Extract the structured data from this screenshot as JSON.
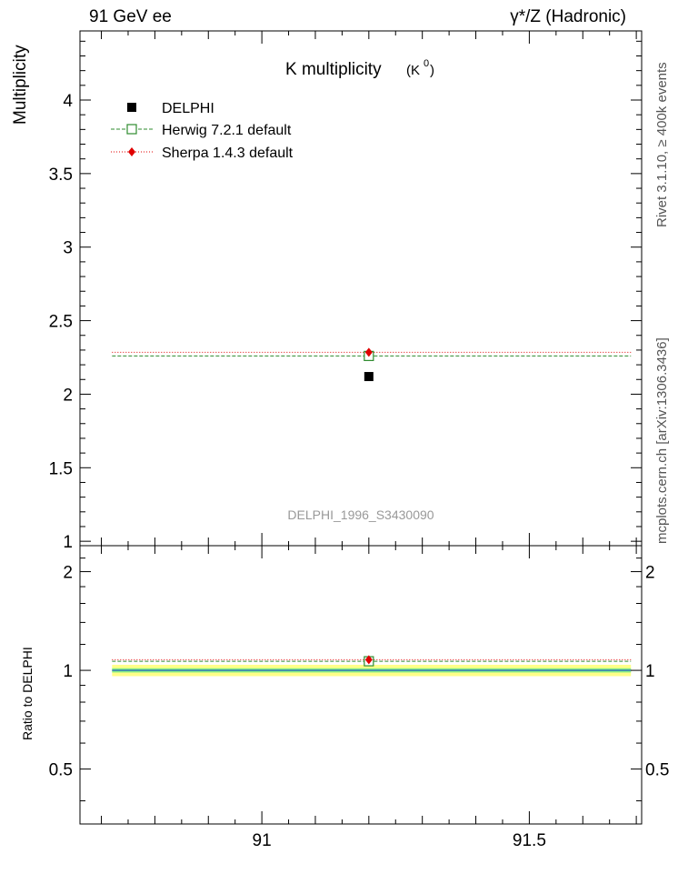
{
  "header": {
    "left_label": "91 GeV ee",
    "right_label": "γ*/Z (Hadronic)"
  },
  "side_labels": {
    "rivet": "Rivet 3.1.10, ≥ 400k events",
    "mcplots": "mcplots.cern.ch [arXiv:1306.3436]"
  },
  "colors": {
    "data": "#000000",
    "herwig": "#2e8b2e",
    "sherpa": "#e00000",
    "band_outer": "#ffff88",
    "band_inner": "#88ee88"
  },
  "chart_data": [
    {
      "type": "scatter",
      "title": "K multiplicity",
      "title_sup_base": "K",
      "title_sup": "0",
      "ylabel": "Multiplicity",
      "xlim": [
        90.66,
        91.71
      ],
      "ylim": [
        0.97,
        4.47
      ],
      "yticks": [
        1,
        1.5,
        2,
        2.5,
        3,
        3.5,
        4
      ],
      "ytick_labels": [
        "1",
        "1.5",
        "2",
        "2.5",
        "3",
        "3.5",
        "4"
      ],
      "watermark": "DELPHI_1996_S3430090",
      "legend_position": "top-left",
      "series": [
        {
          "name": "DELPHI",
          "x": [
            91.2
          ],
          "y": [
            2.12
          ],
          "style": "data"
        },
        {
          "name": "Herwig 7.2.1 default",
          "x": [
            91.2
          ],
          "y": [
            2.26
          ],
          "style": "herwig"
        },
        {
          "name": "Sherpa 1.4.3 default",
          "x": [
            91.2
          ],
          "y": [
            2.285
          ],
          "style": "sherpa"
        }
      ]
    },
    {
      "type": "scatter",
      "ylabel": "Ratio to DELPHI",
      "xlim": [
        90.66,
        91.71
      ],
      "ylim": [
        0.34,
        2.4
      ],
      "log_y": true,
      "yticks": [
        0.5,
        1,
        2
      ],
      "ytick_labels": [
        "0.5",
        "1",
        "2"
      ],
      "xticks": [
        91,
        91.5
      ],
      "xtick_labels": [
        "91",
        "91.5"
      ],
      "band_outer": [
        0.96,
        1.04
      ],
      "band_inner": [
        0.985,
        1.015
      ],
      "series": [
        {
          "name": "Herwig 7.2.1 default",
          "x": [
            91.2
          ],
          "y": [
            1.066
          ],
          "style": "herwig"
        },
        {
          "name": "Sherpa 1.4.3 default",
          "x": [
            91.2
          ],
          "y": [
            1.078
          ],
          "style": "sherpa"
        }
      ]
    }
  ]
}
